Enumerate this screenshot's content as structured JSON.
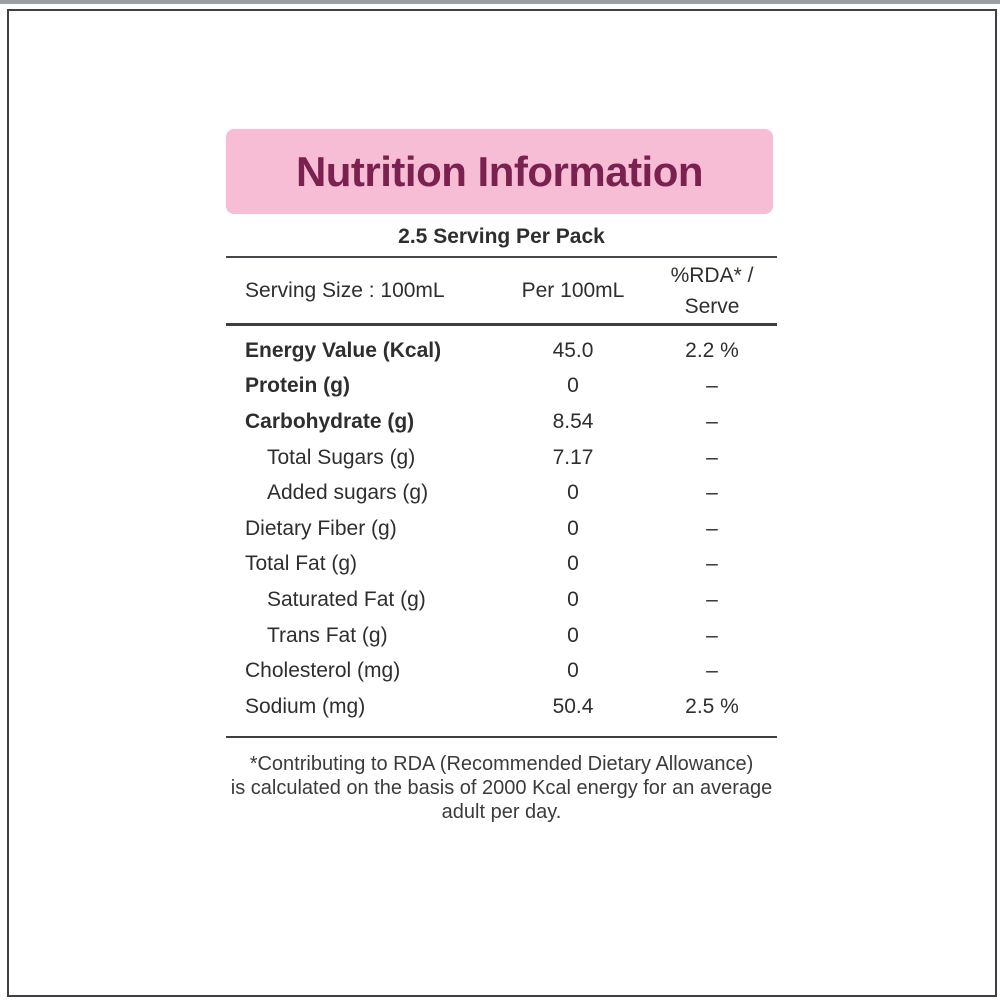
{
  "page": {
    "background": "#ffffff",
    "top_strip_color": "#9ba0a4",
    "frame_border_color": "#3b4046"
  },
  "header": {
    "title": "Nutrition Information",
    "title_color": "#7b2150",
    "banner_color": "#f7bdd5",
    "servings_line": "2.5 Serving Per Pack"
  },
  "table": {
    "header": {
      "serving_size": "Serving Size : 100mL",
      "per_100ml": "Per 100mL",
      "rda_line1": "%RDA* /",
      "rda_line2": "Serve"
    },
    "rows": [
      {
        "label": "Energy Value (Kcal)",
        "indent": false,
        "bold": true,
        "per_100ml": "45.0",
        "rda_per_serve": "2.2 %"
      },
      {
        "label": "Protein (g)",
        "indent": false,
        "bold": true,
        "per_100ml": "0",
        "rda_per_serve": "–"
      },
      {
        "label": "Carbohydrate (g)",
        "indent": false,
        "bold": true,
        "per_100ml": "8.54",
        "rda_per_serve": "–"
      },
      {
        "label": "Total Sugars (g)",
        "indent": true,
        "bold": false,
        "per_100ml": "7.17",
        "rda_per_serve": "–"
      },
      {
        "label": "Added sugars (g)",
        "indent": true,
        "bold": false,
        "per_100ml": "0",
        "rda_per_serve": "–"
      },
      {
        "label": "Dietary Fiber (g)",
        "indent": false,
        "bold": false,
        "per_100ml": "0",
        "rda_per_serve": "–"
      },
      {
        "label": "Total Fat (g)",
        "indent": false,
        "bold": false,
        "per_100ml": "0",
        "rda_per_serve": "–"
      },
      {
        "label": "Saturated Fat (g)",
        "indent": true,
        "bold": false,
        "per_100ml": "0",
        "rda_per_serve": "–"
      },
      {
        "label": "Trans Fat (g)",
        "indent": true,
        "bold": false,
        "per_100ml": "0",
        "rda_per_serve": "–"
      },
      {
        "label": "Cholesterol (mg)",
        "indent": false,
        "bold": false,
        "per_100ml": "0",
        "rda_per_serve": "–"
      },
      {
        "label": "Sodium (mg)",
        "indent": false,
        "bold": false,
        "per_100ml": "50.4",
        "rda_per_serve": "2.5 %"
      }
    ]
  },
  "footnote": {
    "lines": [
      "*Contributing to RDA (Recommended Dietary Allowance)",
      "is calculated on the basis of 2000 Kcal energy for an average",
      "adult per day."
    ]
  }
}
